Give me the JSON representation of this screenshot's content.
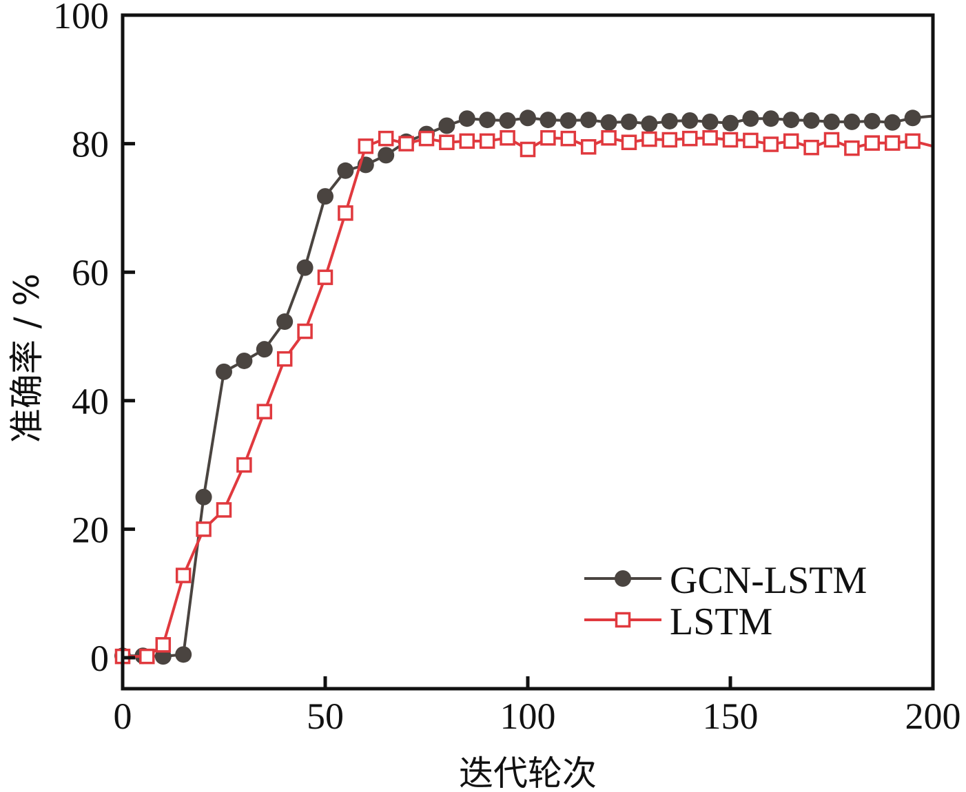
{
  "chart_data": {
    "type": "line",
    "title": "",
    "xlabel": "迭代轮次",
    "ylabel": "准确率 / %",
    "xlim": [
      0,
      200
    ],
    "ylim": [
      -4,
      100
    ],
    "xticks": [
      0,
      50,
      100,
      150,
      200
    ],
    "xtick_labels": [
      "0",
      "50",
      "100",
      "150",
      "200"
    ],
    "yticks": [
      0,
      20,
      40,
      60,
      80,
      100
    ],
    "ytick_labels": [
      "0",
      "20",
      "40",
      "60",
      "80",
      "100"
    ],
    "grid": false,
    "legend_position": "bottom-right",
    "series": [
      {
        "name": "GCN-LSTM",
        "color": "#4a4440",
        "marker": "filled-circle",
        "x": [
          0,
          5,
          10,
          15,
          20,
          25,
          30,
          35,
          40,
          45,
          50,
          55,
          60,
          65,
          70,
          75,
          80,
          85,
          90,
          95,
          100,
          105,
          110,
          115,
          120,
          125,
          130,
          135,
          140,
          145,
          150,
          155,
          160,
          165,
          170,
          175,
          180,
          185,
          190,
          195
        ],
        "y": [
          0.3,
          0.3,
          0.2,
          0.5,
          25,
          44.5,
          46.2,
          48,
          52.3,
          60.7,
          71.8,
          75.8,
          76.7,
          78.2,
          80.3,
          81.5,
          82.8,
          83.9,
          83.7,
          83.6,
          84,
          83.7,
          83.6,
          83.7,
          83.3,
          83.4,
          83.1,
          83.5,
          83.6,
          83.4,
          83.2,
          83.9,
          83.9,
          83.7,
          83.6,
          83.4,
          83.4,
          83.5,
          83.3,
          84
        ],
        "line_end": [
          200,
          84.3
        ]
      },
      {
        "name": "LSTM",
        "color": "#e0393e",
        "marker": "open-square",
        "x": [
          0,
          6,
          10,
          15,
          20,
          25,
          30,
          35,
          40,
          45,
          50,
          55,
          60,
          65,
          70,
          75,
          80,
          85,
          90,
          95,
          100,
          105,
          110,
          115,
          120,
          125,
          130,
          135,
          140,
          145,
          150,
          155,
          160,
          165,
          170,
          175,
          180,
          185,
          190,
          195
        ],
        "y": [
          0.2,
          0.2,
          2,
          12.8,
          20,
          23,
          30,
          38.3,
          46.5,
          50.8,
          59.2,
          69.2,
          79.6,
          80.8,
          80,
          80.8,
          80.2,
          80.4,
          80.4,
          80.9,
          79.1,
          80.9,
          80.8,
          79.5,
          80.9,
          80.2,
          80.7,
          80.6,
          80.8,
          80.9,
          80.6,
          80.5,
          79.9,
          80.4,
          79.4,
          80.6,
          79.3,
          80.1,
          80.1,
          80.4
        ],
        "line_end": [
          200,
          79.6
        ]
      }
    ]
  }
}
